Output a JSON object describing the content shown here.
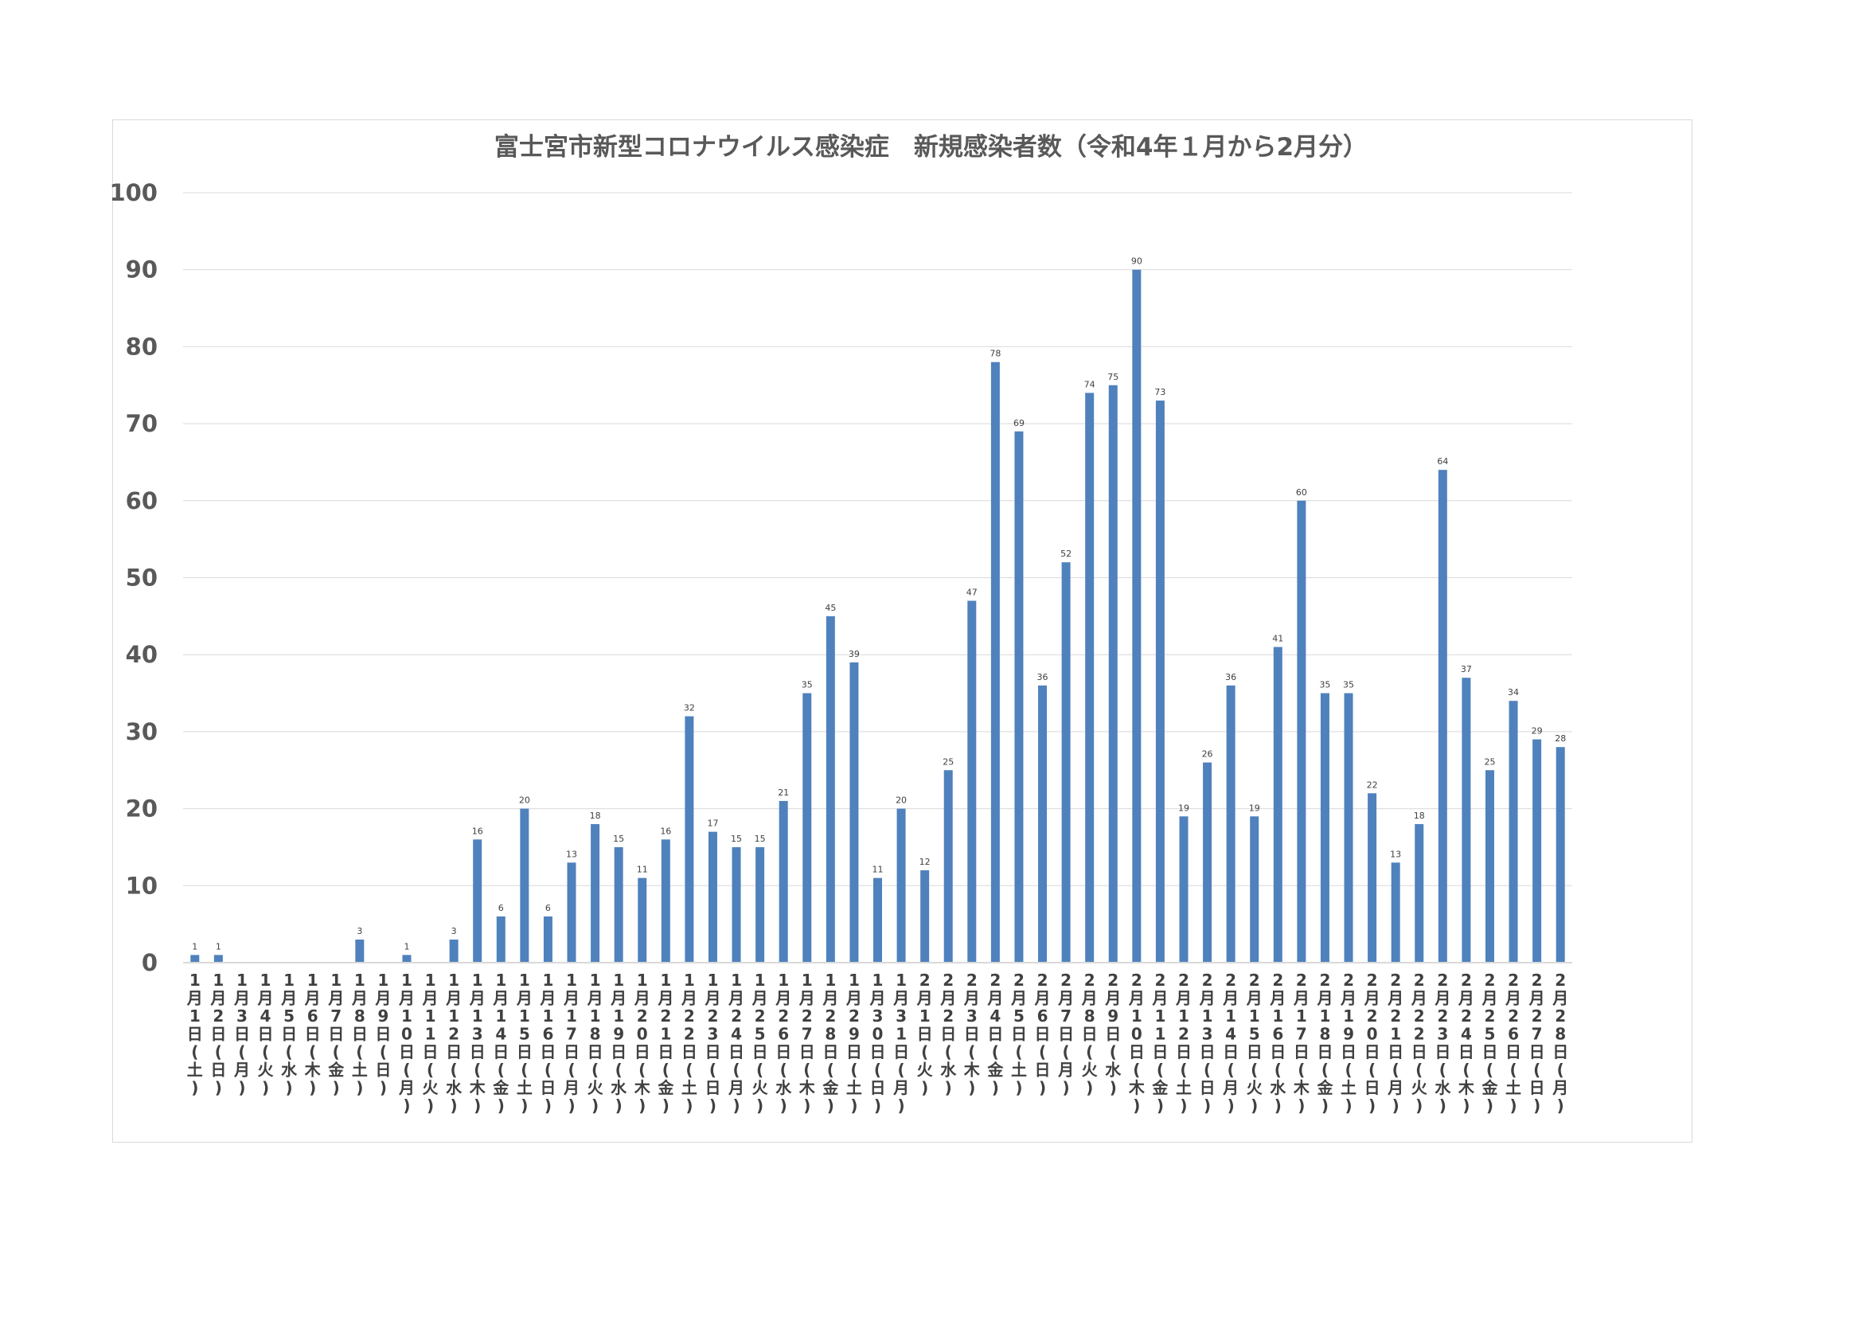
{
  "chart_data": {
    "type": "bar",
    "title": "富士宮市新型コロナウイルス感染症　新規感染者数（令和4年１月から2月分）",
    "xlabel": "",
    "ylabel": "",
    "ylim": [
      0,
      100
    ],
    "yticks": [
      0,
      10,
      20,
      30,
      40,
      50,
      60,
      70,
      80,
      90,
      100
    ],
    "grid": true,
    "bar_color": "#4f81bd",
    "categories": [
      "1月1日(土)",
      "1月2日(日)",
      "1月3日(月)",
      "1月4日(火)",
      "1月5日(水)",
      "1月6日(木)",
      "1月7日(金)",
      "1月8日(土)",
      "1月9日(日)",
      "1月10日(月)",
      "1月11日(火)",
      "1月12日(水)",
      "1月13日(木)",
      "1月14日(金)",
      "1月15日(土)",
      "1月16日(日)",
      "1月17日(月)",
      "1月18日(火)",
      "1月19日(水)",
      "1月20日(木)",
      "1月21日(金)",
      "1月22日(土)",
      "1月23日(日)",
      "1月24日(月)",
      "1月25日(火)",
      "1月26日(水)",
      "1月27日(木)",
      "1月28日(金)",
      "1月29日(土)",
      "1月30日(日)",
      "1月31日(月)",
      "2月1日(火)",
      "2月2日(水)",
      "2月3日(木)",
      "2月4日(金)",
      "2月5日(土)",
      "2月6日(日)",
      "2月7日(月)",
      "2月8日(火)",
      "2月9日(水)",
      "2月10日(木)",
      "2月11日(金)",
      "2月12日(土)",
      "2月13日(日)",
      "2月14日(月)",
      "2月15日(火)",
      "2月16日(水)",
      "2月17日(木)",
      "2月18日(金)",
      "2月19日(土)",
      "2月20日(日)",
      "2月21日(月)",
      "2月22日(火)",
      "2月23日(水)",
      "2月24日(木)",
      "2月25日(金)",
      "2月26日(土)",
      "2月27日(日)",
      "2月28日(月)"
    ],
    "values": [
      1,
      1,
      null,
      null,
      null,
      null,
      null,
      3,
      null,
      1,
      null,
      3,
      16,
      6,
      20,
      6,
      13,
      18,
      15,
      11,
      16,
      32,
      17,
      15,
      15,
      21,
      35,
      45,
      39,
      11,
      20,
      12,
      25,
      47,
      78,
      69,
      36,
      52,
      74,
      75,
      90,
      73,
      19,
      26,
      36,
      19,
      41,
      60,
      35,
      35,
      22,
      13,
      18,
      64,
      37,
      25,
      34,
      29,
      28
    ]
  }
}
